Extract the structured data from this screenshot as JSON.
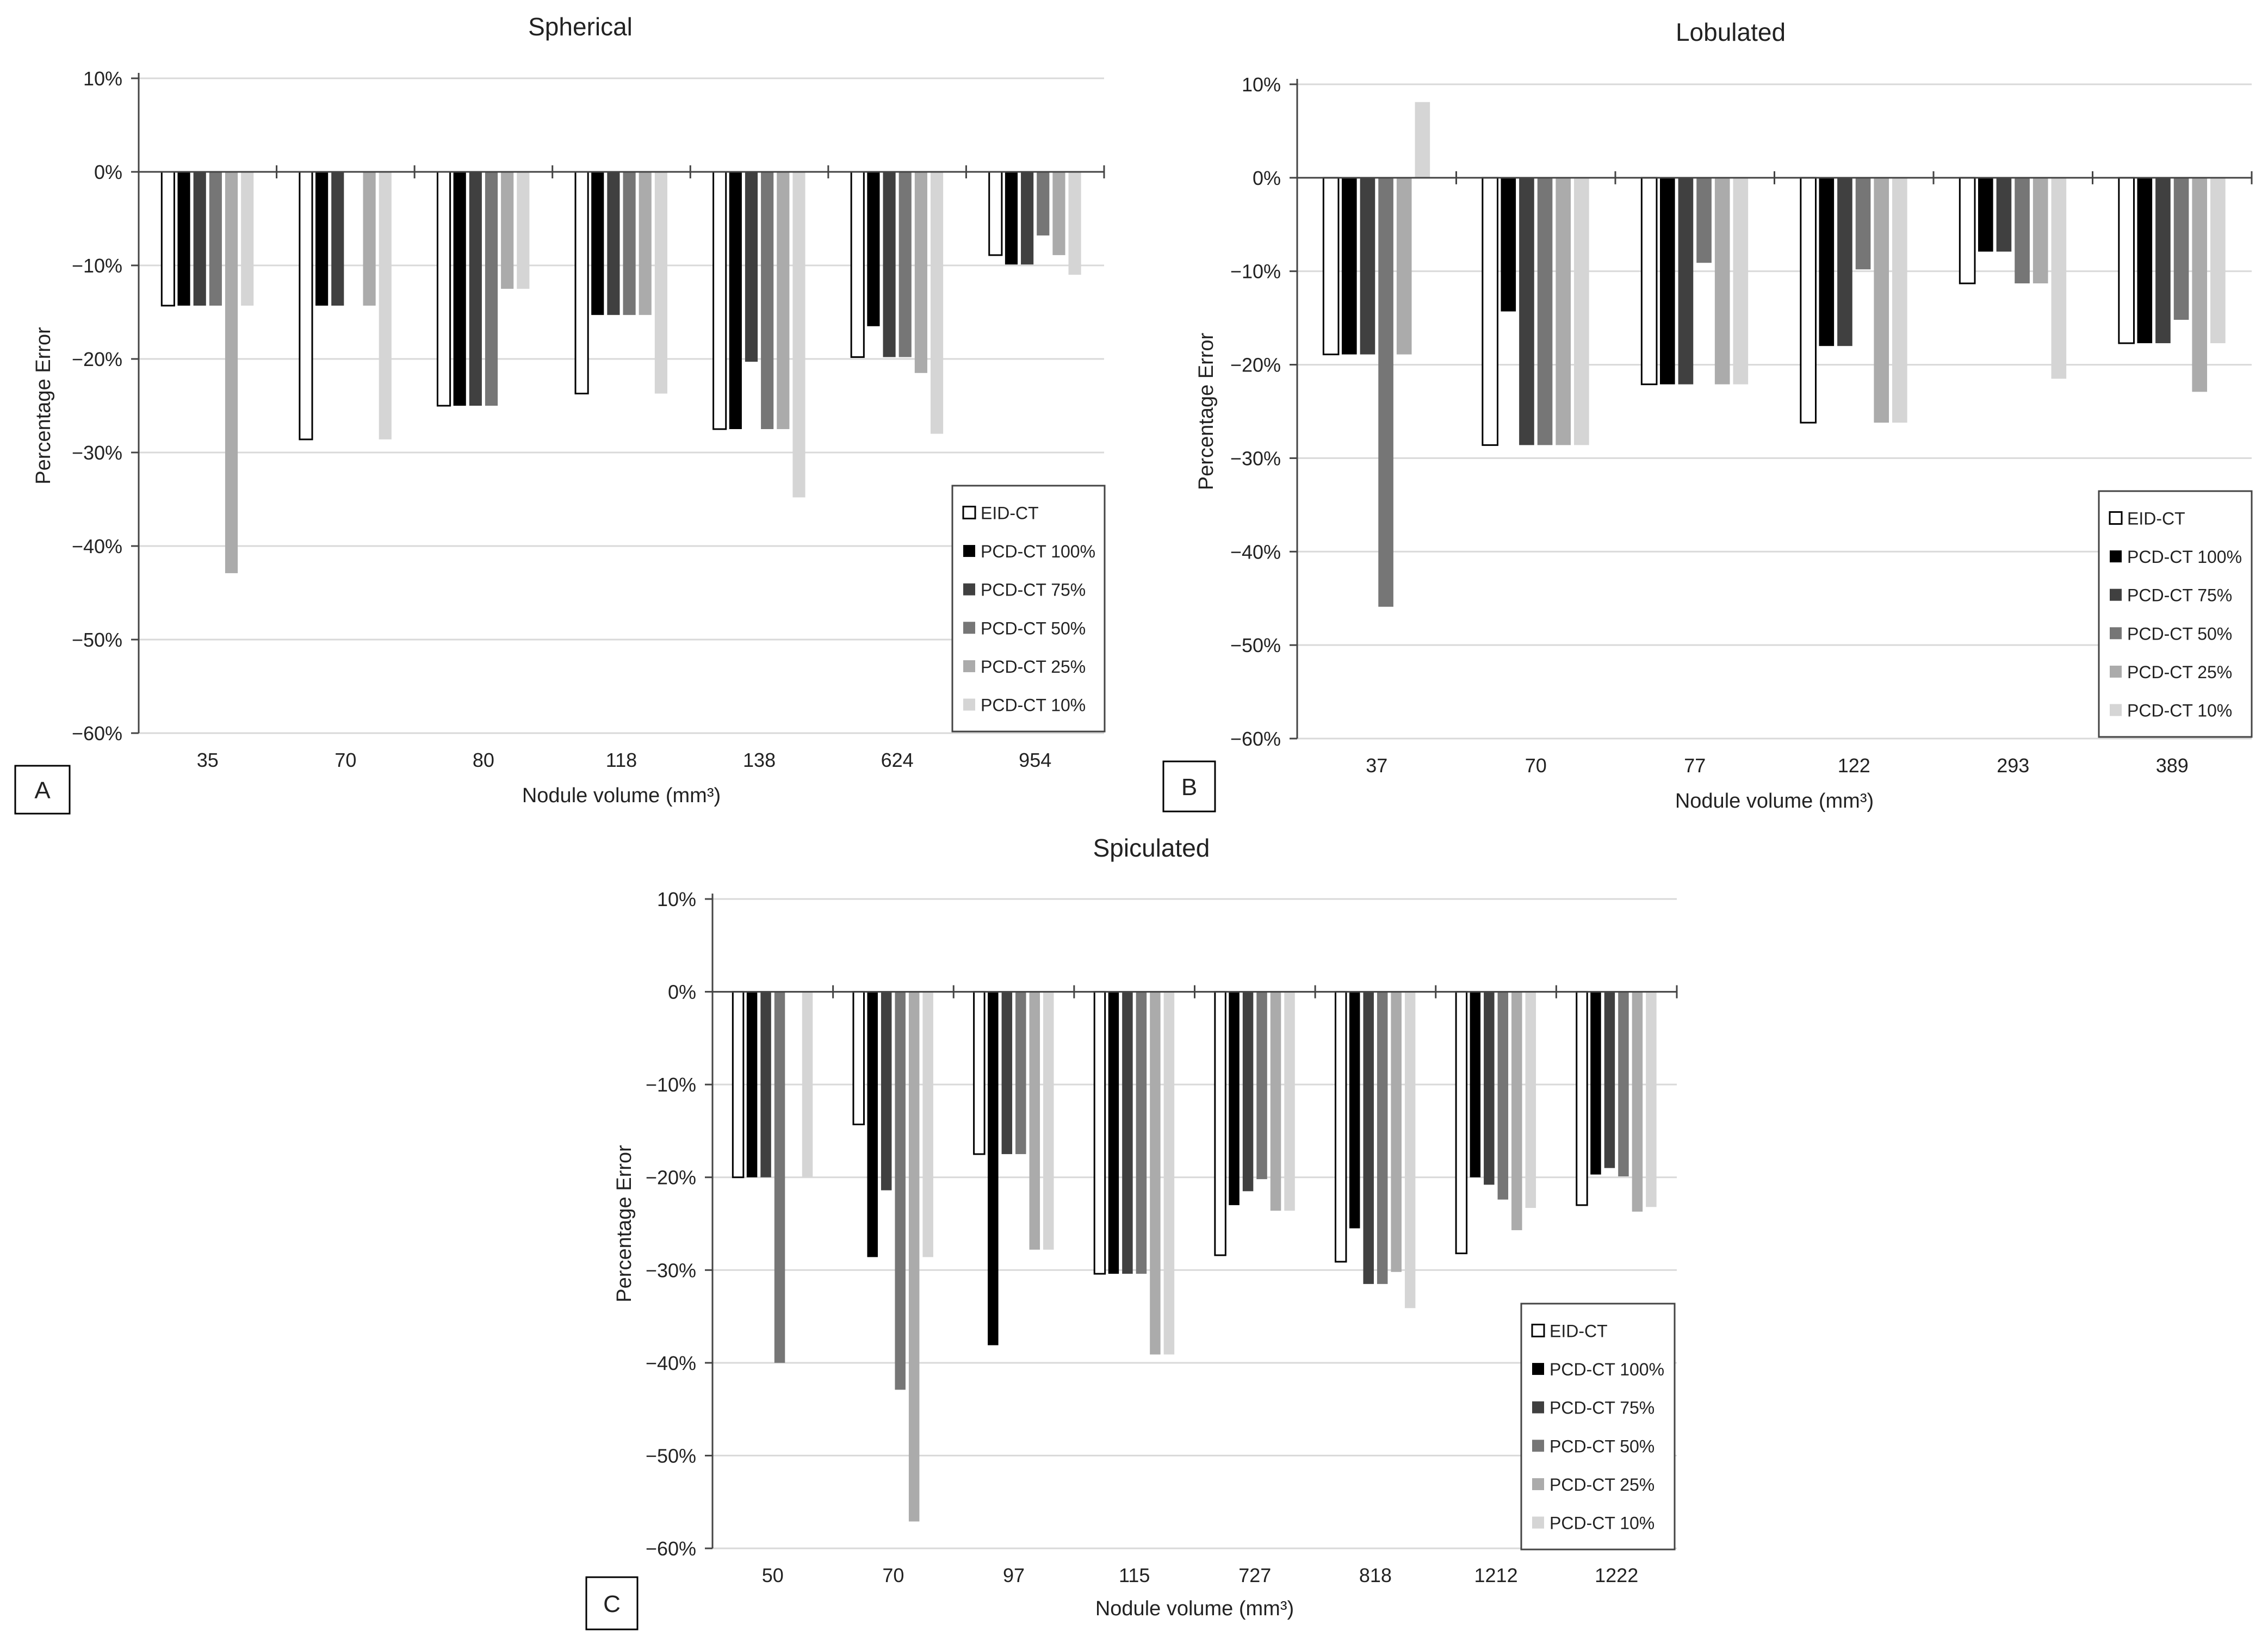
{
  "series_names": [
    "EID-CT",
    "PCD-CT 100%",
    "PCD-CT 75%",
    "PCD-CT 50%",
    "PCD-CT 25%",
    "PCD-CT 10%"
  ],
  "series_colors": [
    "#ffffff",
    "#000000",
    "#404040",
    "#767676",
    "#ababab",
    "#d5d5d5"
  ],
  "chart_data": [
    {
      "type": "bar",
      "title": "Spherical",
      "panel_label": "A",
      "xlabel": "Nodule volume (mm³)",
      "ylabel": "Percentage Error",
      "ylim": [
        -0.6,
        0.1
      ],
      "yticks": [
        "10%",
        "0%",
        "−10%",
        "−20%",
        "−30%",
        "−40%",
        "−50%",
        "−60%"
      ],
      "categories": [
        "35",
        "70",
        "80",
        "118",
        "138",
        "624",
        "954"
      ],
      "series": [
        {
          "name": "EID-CT",
          "values": [
            -0.143,
            -0.286,
            -0.25,
            -0.237,
            -0.275,
            -0.198,
            -0.089
          ]
        },
        {
          "name": "PCD-CT 100%",
          "values": [
            -0.143,
            -0.143,
            -0.25,
            -0.153,
            -0.275,
            -0.165,
            -0.099
          ]
        },
        {
          "name": "PCD-CT 75%",
          "values": [
            -0.143,
            -0.143,
            -0.25,
            -0.153,
            -0.203,
            -0.198,
            -0.099
          ]
        },
        {
          "name": "PCD-CT 50%",
          "values": [
            -0.143,
            0,
            -0.25,
            -0.153,
            -0.275,
            -0.198,
            -0.068
          ]
        },
        {
          "name": "PCD-CT 25%",
          "values": [
            -0.429,
            -0.143,
            -0.125,
            -0.153,
            -0.275,
            -0.215,
            -0.089
          ]
        },
        {
          "name": "PCD-CT 10%",
          "values": [
            -0.143,
            -0.286,
            -0.125,
            -0.237,
            -0.348,
            -0.28,
            -0.11
          ]
        }
      ],
      "legend_position": "bottom-right"
    },
    {
      "type": "bar",
      "title": "Lobulated",
      "panel_label": "B",
      "xlabel": "Nodule volume (mm³)",
      "ylabel": "Percentage Error",
      "ylim": [
        -0.6,
        0.1
      ],
      "yticks": [
        "10%",
        "0%",
        "−10%",
        "−20%",
        "−30%",
        "−40%",
        "−50%",
        "−60%"
      ],
      "categories": [
        "37",
        "70",
        "77",
        "122",
        "293",
        "389"
      ],
      "series": [
        {
          "name": "EID-CT",
          "values": [
            -0.189,
            -0.286,
            -0.221,
            -0.262,
            -0.113,
            -0.177
          ]
        },
        {
          "name": "PCD-CT 100%",
          "values": [
            -0.189,
            -0.143,
            -0.221,
            -0.18,
            -0.079,
            -0.177
          ]
        },
        {
          "name": "PCD-CT 75%",
          "values": [
            -0.189,
            -0.286,
            -0.221,
            -0.18,
            -0.079,
            -0.177
          ]
        },
        {
          "name": "PCD-CT 50%",
          "values": [
            -0.459,
            -0.286,
            -0.091,
            -0.098,
            -0.113,
            -0.152
          ]
        },
        {
          "name": "PCD-CT 25%",
          "values": [
            -0.189,
            -0.286,
            -0.221,
            -0.262,
            -0.113,
            -0.229
          ]
        },
        {
          "name": "PCD-CT 10%",
          "values": [
            0.081,
            -0.286,
            -0.221,
            -0.262,
            -0.215,
            -0.177
          ]
        }
      ],
      "legend_position": "bottom-right"
    },
    {
      "type": "bar",
      "title": "Spiculated",
      "panel_label": "C",
      "xlabel": "Nodule volume (mm³)",
      "ylabel": "Percentage Error",
      "ylim": [
        -0.6,
        0.1
      ],
      "yticks": [
        "10%",
        "0%",
        "−10%",
        "−20%",
        "−30%",
        "−40%",
        "−50%",
        "−60%"
      ],
      "categories": [
        "50",
        "70",
        "97",
        "115",
        "727",
        "818",
        "1212",
        "1222"
      ],
      "series": [
        {
          "name": "EID-CT",
          "values": [
            -0.2,
            -0.143,
            -0.175,
            -0.304,
            -0.284,
            -0.291,
            -0.282,
            -0.23
          ]
        },
        {
          "name": "PCD-CT 100%",
          "values": [
            -0.2,
            -0.286,
            -0.381,
            -0.304,
            -0.23,
            -0.255,
            -0.2,
            -0.197
          ]
        },
        {
          "name": "PCD-CT 75%",
          "values": [
            -0.2,
            -0.214,
            -0.175,
            -0.304,
            -0.215,
            -0.315,
            -0.208,
            -0.19
          ]
        },
        {
          "name": "PCD-CT 50%",
          "values": [
            -0.4,
            -0.429,
            -0.175,
            -0.304,
            -0.202,
            -0.315,
            -0.224,
            -0.199
          ]
        },
        {
          "name": "PCD-CT 25%",
          "values": [
            0,
            -0.571,
            -0.278,
            -0.391,
            -0.236,
            -0.302,
            -0.257,
            -0.237
          ]
        },
        {
          "name": "PCD-CT 10%",
          "values": [
            -0.2,
            -0.286,
            -0.278,
            -0.391,
            -0.236,
            -0.341,
            -0.233,
            -0.232
          ]
        }
      ],
      "legend_position": "bottom-right"
    }
  ]
}
